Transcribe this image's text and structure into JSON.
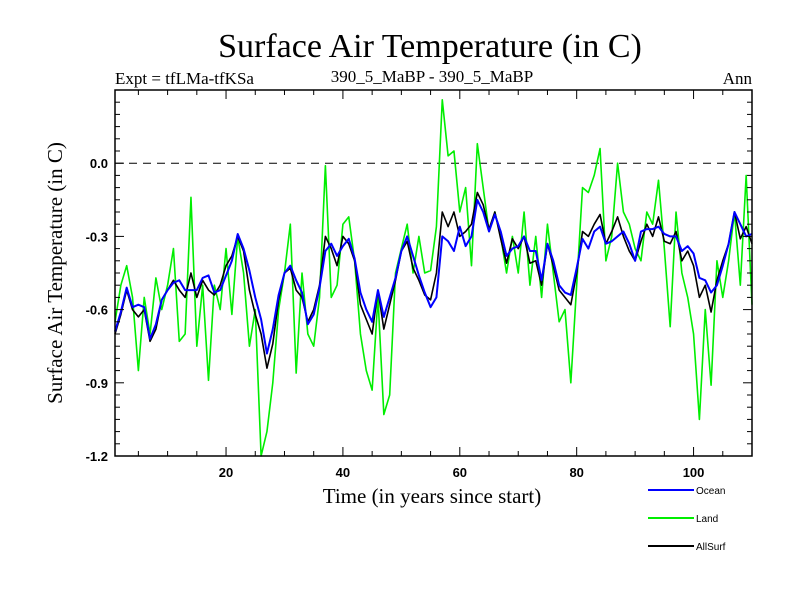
{
  "chart_data": {
    "type": "line",
    "title": "Surface Air Temperature (in C)",
    "subtitle_left": "Expt = tfLMa-tfKSa",
    "subtitle_center": "390_5_MaBP - 390_5_MaBP",
    "subtitle_right": "Ann",
    "xlabel": "Time (in years since start)",
    "ylabel": "Surface Air Temperature (in C)",
    "xlim": [
      1,
      110
    ],
    "ylim": [
      -1.2,
      0.3
    ],
    "x_ticks": [
      20,
      40,
      60,
      80,
      100
    ],
    "y_ticks": [
      -1.2,
      -0.9,
      -0.6,
      -0.3,
      0.0
    ],
    "y_tick_labels": [
      "-1.2",
      "-0.9",
      "-0.6",
      "-0.3",
      "0.0"
    ],
    "reference_line": 0.0,
    "series": [
      {
        "name": "Land",
        "color": "#00ee00",
        "values": [
          -0.65,
          -0.5,
          -0.42,
          -0.55,
          -0.85,
          -0.55,
          -0.7,
          -0.47,
          -0.6,
          -0.5,
          -0.35,
          -0.73,
          -0.7,
          -0.14,
          -0.75,
          -0.5,
          -0.89,
          -0.5,
          -0.6,
          -0.35,
          -0.62,
          -0.3,
          -0.45,
          -0.75,
          -0.6,
          -1.2,
          -1.1,
          -0.9,
          -0.6,
          -0.45,
          -0.25,
          -0.86,
          -0.45,
          -0.7,
          -0.75,
          -0.55,
          -0.01,
          -0.55,
          -0.5,
          -0.25,
          -0.22,
          -0.4,
          -0.7,
          -0.85,
          -0.93,
          -0.55,
          -1.03,
          -0.95,
          -0.45,
          -0.35,
          -0.25,
          -0.45,
          -0.3,
          -0.45,
          -0.44,
          -0.26,
          0.26,
          0.03,
          0.05,
          -0.2,
          -0.1,
          -0.42,
          0.08,
          -0.1,
          -0.28,
          -0.2,
          -0.3,
          -0.45,
          -0.3,
          -0.45,
          -0.2,
          -0.5,
          -0.3,
          -0.55,
          -0.25,
          -0.45,
          -0.65,
          -0.6,
          -0.9,
          -0.5,
          -0.1,
          -0.12,
          -0.05,
          0.06,
          -0.4,
          -0.3,
          0.0,
          -0.2,
          -0.25,
          -0.35,
          -0.4,
          -0.2,
          -0.25,
          -0.07,
          -0.35,
          -0.67,
          -0.2,
          -0.45,
          -0.55,
          -0.7,
          -1.05,
          -0.6,
          -0.91,
          -0.4,
          -0.55,
          -0.4,
          -0.2,
          -0.5,
          -0.05,
          -0.58
        ]
      },
      {
        "name": "AllSurf",
        "color": "#000000",
        "values": [
          -0.7,
          -0.62,
          -0.52,
          -0.6,
          -0.63,
          -0.6,
          -0.73,
          -0.68,
          -0.56,
          -0.52,
          -0.48,
          -0.52,
          -0.55,
          -0.45,
          -0.55,
          -0.48,
          -0.52,
          -0.54,
          -0.5,
          -0.42,
          -0.38,
          -0.3,
          -0.36,
          -0.52,
          -0.62,
          -0.7,
          -0.84,
          -0.74,
          -0.56,
          -0.45,
          -0.43,
          -0.52,
          -0.55,
          -0.65,
          -0.6,
          -0.5,
          -0.3,
          -0.35,
          -0.42,
          -0.3,
          -0.33,
          -0.4,
          -0.58,
          -0.64,
          -0.7,
          -0.52,
          -0.68,
          -0.58,
          -0.48,
          -0.36,
          -0.32,
          -0.43,
          -0.48,
          -0.54,
          -0.56,
          -0.45,
          -0.2,
          -0.26,
          -0.2,
          -0.3,
          -0.28,
          -0.25,
          -0.12,
          -0.17,
          -0.27,
          -0.2,
          -0.31,
          -0.41,
          -0.31,
          -0.35,
          -0.3,
          -0.41,
          -0.4,
          -0.5,
          -0.33,
          -0.42,
          -0.52,
          -0.55,
          -0.58,
          -0.45,
          -0.28,
          -0.3,
          -0.25,
          -0.21,
          -0.33,
          -0.28,
          -0.22,
          -0.3,
          -0.36,
          -0.4,
          -0.32,
          -0.25,
          -0.3,
          -0.22,
          -0.32,
          -0.33,
          -0.28,
          -0.4,
          -0.36,
          -0.42,
          -0.55,
          -0.5,
          -0.61,
          -0.48,
          -0.4,
          -0.33,
          -0.2,
          -0.31,
          -0.26,
          -0.33
        ]
      },
      {
        "name": "Ocean",
        "color": "#0000ff",
        "values": [
          -0.69,
          -0.61,
          -0.51,
          -0.59,
          -0.58,
          -0.59,
          -0.72,
          -0.66,
          -0.56,
          -0.52,
          -0.49,
          -0.48,
          -0.52,
          -0.52,
          -0.52,
          -0.47,
          -0.46,
          -0.53,
          -0.52,
          -0.46,
          -0.4,
          -0.29,
          -0.35,
          -0.44,
          -0.55,
          -0.64,
          -0.78,
          -0.68,
          -0.54,
          -0.45,
          -0.42,
          -0.48,
          -0.53,
          -0.66,
          -0.62,
          -0.51,
          -0.36,
          -0.33,
          -0.38,
          -0.34,
          -0.31,
          -0.39,
          -0.53,
          -0.6,
          -0.65,
          -0.52,
          -0.63,
          -0.55,
          -0.47,
          -0.36,
          -0.3,
          -0.38,
          -0.46,
          -0.53,
          -0.59,
          -0.55,
          -0.3,
          -0.32,
          -0.36,
          -0.26,
          -0.34,
          -0.3,
          -0.15,
          -0.2,
          -0.28,
          -0.21,
          -0.28,
          -0.38,
          -0.35,
          -0.34,
          -0.3,
          -0.36,
          -0.36,
          -0.48,
          -0.33,
          -0.4,
          -0.5,
          -0.53,
          -0.54,
          -0.43,
          -0.31,
          -0.35,
          -0.28,
          -0.26,
          -0.33,
          -0.32,
          -0.3,
          -0.28,
          -0.33,
          -0.4,
          -0.28,
          -0.27,
          -0.27,
          -0.26,
          -0.29,
          -0.3,
          -0.3,
          -0.36,
          -0.34,
          -0.37,
          -0.47,
          -0.48,
          -0.53,
          -0.5,
          -0.42,
          -0.33,
          -0.2,
          -0.25,
          -0.3,
          -0.29
        ]
      }
    ],
    "legend": [
      {
        "name": "Ocean",
        "color": "#0000ff"
      },
      {
        "name": "Land",
        "color": "#00ee00"
      },
      {
        "name": "AllSurf",
        "color": "#000000"
      }
    ]
  }
}
